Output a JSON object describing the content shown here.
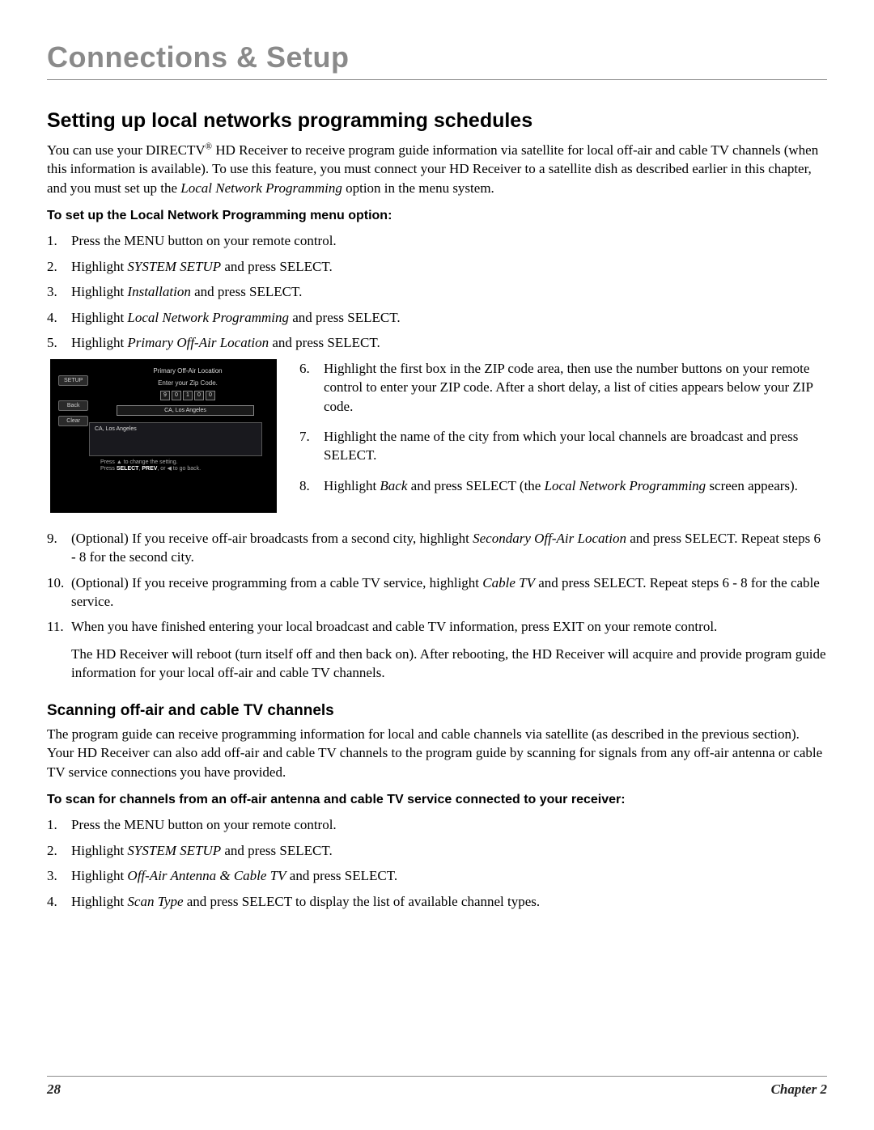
{
  "page_title": "Connections & Setup",
  "section1": {
    "title": "Setting up local networks programming schedules",
    "intro_html": "You can use your DIRECTV<sup>®</sup> HD Receiver to receive program guide information via satellite for local off-air and cable TV channels (when this information is available). To use this feature, you must connect your HD Receiver to a satellite dish as described earlier in this chapter, and you must set up the <em>Local Network Programming</em> option in the menu system.",
    "bold": "To set up the Local Network Programming menu option:",
    "steps_a": [
      "Press the MENU button on your remote control.",
      "Highlight <em>SYSTEM SETUP</em> and press SELECT.",
      "Highlight <em>Installation</em> and press SELECT.",
      "Highlight <em>Local Network Programming</em> and press SELECT.",
      "Highlight <em>Primary Off-Air Location</em> and press SELECT."
    ],
    "steps_b": [
      "Highlight the first box in the ZIP code area, then use the number buttons on your remote control to enter your ZIP code. After a short delay, a list of cities appears below your ZIP code.",
      "Highlight the name of the city from which your local channels are broadcast and press SELECT.",
      "Highlight <em>Back</em> and press SELECT (the <em>Local Network Programming</em> screen appears)."
    ],
    "steps_c": [
      "(Optional) If you receive off-air broadcasts from a second city, highlight <em>Secondary Off-Air Location</em> and press SELECT. Repeat steps 6 - 8 for the second city.",
      "(Optional) If you receive programming from a cable TV service, highlight <em>Cable TV</em> and press SELECT. Repeat steps 6 - 8 for the cable service.",
      "When you have finished entering your local broadcast and cable TV information, press EXIT on your remote control.<p>The HD Receiver will reboot (turn itself off and then back on). After rebooting, the HD Receiver will acquire and provide program guide information for your local off-air and cable TV channels.</p>"
    ]
  },
  "screenshot": {
    "header": "Primary Off-Air Location",
    "subheader": "Enter your Zip Code.",
    "buttons": [
      "SETUP",
      "Back",
      "Clear"
    ],
    "zip": [
      "9",
      "0",
      "1",
      "0",
      "0"
    ],
    "city_selected": "CA, Los Angeles",
    "listing": "CA, Los Angeles",
    "footer_l1": "Press ▲ to change the setting.",
    "footer_l2": "Press SELECT, PREV, or ◀ to go back."
  },
  "section2": {
    "title": "Scanning off-air and cable TV channels",
    "intro": "The program guide can receive programming information for local and cable channels via satellite (as described in the previous section). Your HD Receiver can also add off-air and cable TV channels to the program guide by scanning for signals from any off-air antenna or cable TV service connections you have provided.",
    "bold": "To scan for channels from an off-air antenna and cable TV service connected to your receiver:",
    "steps": [
      "Press the MENU button on your remote control.",
      "Highlight <em>SYSTEM SETUP</em> and press SELECT.",
      "Highlight <em>Off-Air Antenna & Cable TV</em> and press SELECT.",
      "Highlight <em>Scan Type</em> and press SELECT to display the list of available channel types."
    ]
  },
  "footer": {
    "page": "28",
    "chapter": "Chapter 2"
  }
}
